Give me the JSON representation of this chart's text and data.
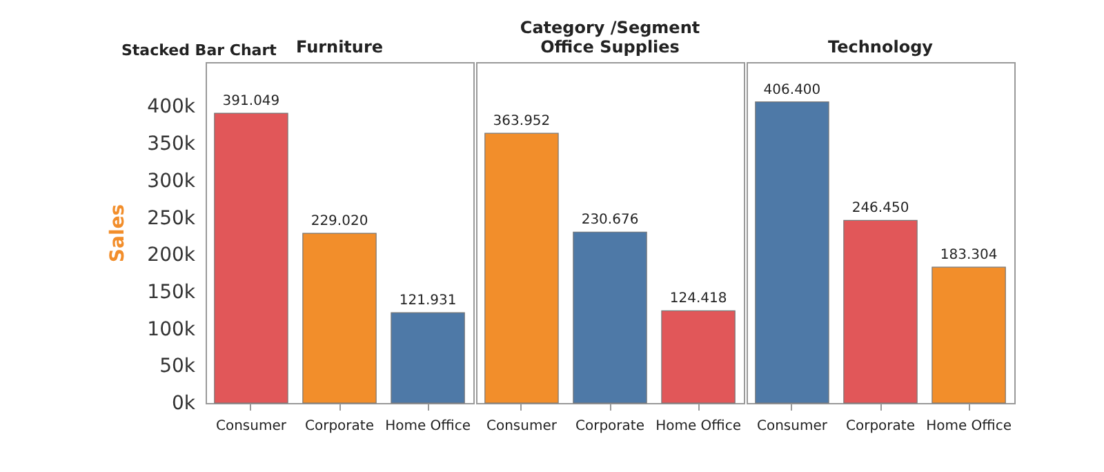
{
  "chart_data": [
    {
      "type": "bar",
      "title": "Furniture",
      "annotations": [
        "Stacked Bar Chart"
      ],
      "ylabel": "Sales",
      "categories": [
        "Consumer",
        "Corporate",
        "Home Office"
      ],
      "values": [
        391049,
        229020,
        121931
      ],
      "colors": [
        "#e15759",
        "#f28e2b",
        "#4e79a7"
      ],
      "value_labels": [
        "391.049",
        "229.020",
        "121.931"
      ],
      "ylim": [
        0,
        460000
      ],
      "yticks": [
        {
          "value": 0,
          "label": "0k"
        },
        {
          "value": 50000,
          "label": "50k"
        },
        {
          "value": 100000,
          "label": "100k"
        },
        {
          "value": 150000,
          "label": "150k"
        },
        {
          "value": 200000,
          "label": "200k"
        },
        {
          "value": 250000,
          "label": "250k"
        },
        {
          "value": 300000,
          "label": "300k"
        },
        {
          "value": 350000,
          "label": "350k"
        },
        {
          "value": 400000,
          "label": "400k"
        }
      ]
    },
    {
      "type": "bar",
      "title": "Office Supplies",
      "annotations": [
        "Category /Segment"
      ],
      "categories": [
        "Consumer",
        "Corporate",
        "Home Office"
      ],
      "values": [
        363952,
        230676,
        124418
      ],
      "colors": [
        "#f28e2b",
        "#4e79a7",
        "#e15759"
      ],
      "value_labels": [
        "363.952",
        "230.676",
        "124.418"
      ],
      "ylim": [
        0,
        460000
      ],
      "tick_labels": "x"
    },
    {
      "type": "bar",
      "title": "Technology",
      "categories": [
        "Consumer",
        "Corporate",
        "Home Office"
      ],
      "values": [
        406400,
        246450,
        183304
      ],
      "colors": [
        "#4e79a7",
        "#e15759",
        "#f28e2b"
      ],
      "value_labels": [
        "406.400",
        "246.450",
        "183.304"
      ],
      "ylim": [
        0,
        460000
      ],
      "tick_labels": "x"
    }
  ]
}
